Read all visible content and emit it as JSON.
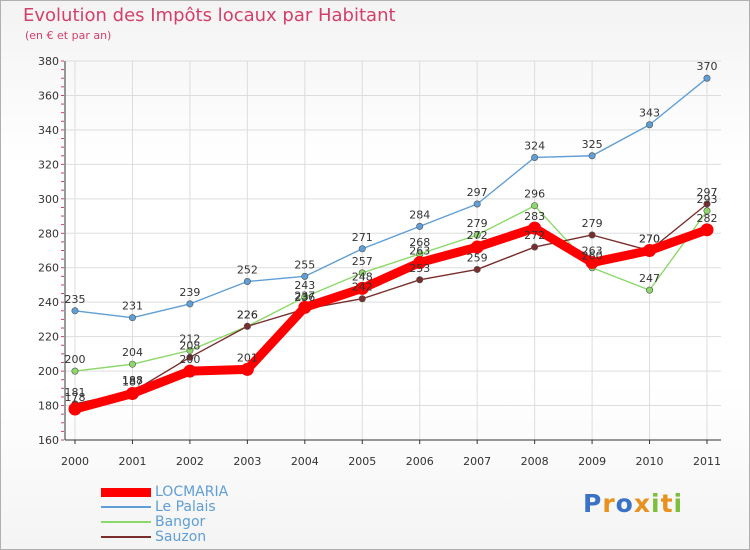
{
  "title": "Evolution des Impôts locaux par Habitant",
  "subtitle": "(en € et par an)",
  "brand": {
    "letters": [
      "P",
      "r",
      "o",
      "x",
      "i",
      "t",
      "i"
    ],
    "colors": [
      "#3a73c5",
      "#e8911e",
      "#3a73c5",
      "#e8911e",
      "#7dbe3c",
      "#e8911e",
      "#7dbe3c"
    ]
  },
  "chart_data": {
    "type": "line",
    "title": "Evolution des Impôts locaux par Habitant",
    "subtitle": "(en € et par an)",
    "xlabel": "",
    "ylabel": "",
    "x": [
      "2000",
      "2001",
      "2002",
      "2003",
      "2004",
      "2005",
      "2006",
      "2007",
      "2008",
      "2009",
      "2010",
      "2011"
    ],
    "ylim": [
      160,
      380
    ],
    "yticks": [
      160,
      180,
      200,
      220,
      240,
      260,
      280,
      300,
      320,
      340,
      360,
      380
    ],
    "grid": true,
    "legend_position": "bottom-left",
    "series": [
      {
        "name": "LOCMARIA",
        "color": "#ff0000",
        "values": [
          178,
          187,
          200,
          201,
          237,
          248,
          263,
          272,
          283,
          263,
          270,
          282
        ],
        "labels": [
          "178",
          "187",
          "200",
          "201",
          "237",
          "248",
          "263",
          "272",
          "283",
          "263",
          "270",
          "282"
        ]
      },
      {
        "name": "Le Palais",
        "color": "#5f9ed6",
        "values": [
          235,
          231,
          239,
          252,
          255,
          271,
          284,
          297,
          324,
          325,
          343,
          370
        ],
        "labels": [
          "235",
          "231",
          "239",
          "252",
          "255",
          "271",
          "284",
          "297",
          "324",
          "325",
          "343",
          "370"
        ]
      },
      {
        "name": "Bangor",
        "color": "#8dd86a",
        "values": [
          200,
          204,
          212,
          226,
          243,
          257,
          268,
          279,
          296,
          260,
          247,
          293
        ],
        "labels": [
          "200",
          "204",
          "212",
          "226",
          "243",
          "257",
          "268",
          "279",
          "296",
          "260",
          "247",
          "293"
        ]
      },
      {
        "name": "Sauzon",
        "color": "#7a2d2d",
        "values": [
          181,
          188,
          208,
          226,
          236,
          242,
          253,
          259,
          272,
          279,
          270,
          297
        ],
        "labels": [
          "181",
          "188",
          "208",
          "226",
          "236",
          "242",
          "253",
          "259",
          "272",
          "279",
          "270",
          "297"
        ]
      }
    ]
  }
}
